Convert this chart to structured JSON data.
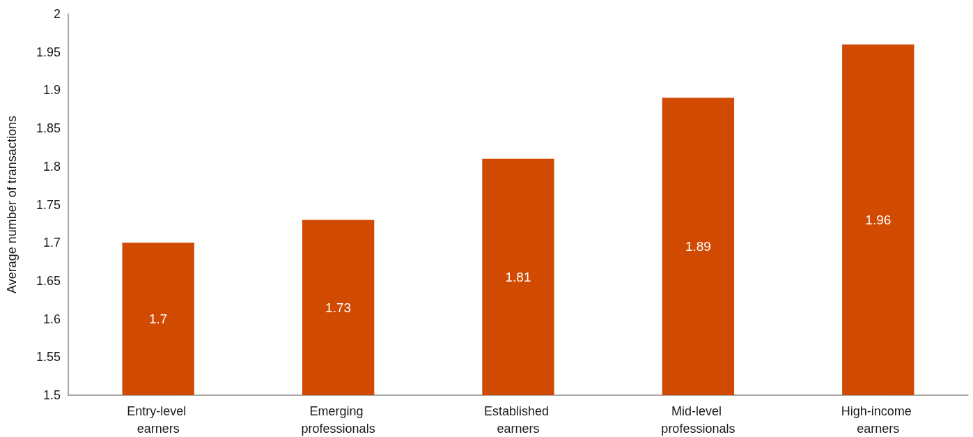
{
  "chart_data": {
    "type": "bar",
    "ylabel": "Average number of transactions",
    "categories": [
      "Entry-level earners",
      "Emerging professionals",
      "Established earners",
      "Mid-level professionals",
      "High-income earners"
    ],
    "values": [
      1.7,
      1.73,
      1.81,
      1.89,
      1.96
    ],
    "color": "#d04a02",
    "ylim": [
      1.5,
      2
    ],
    "yticks": [
      1.5,
      1.55,
      1.6,
      1.65,
      1.7,
      1.75,
      1.8,
      1.85,
      1.9,
      1.95,
      2
    ],
    "data_labels": true
  }
}
